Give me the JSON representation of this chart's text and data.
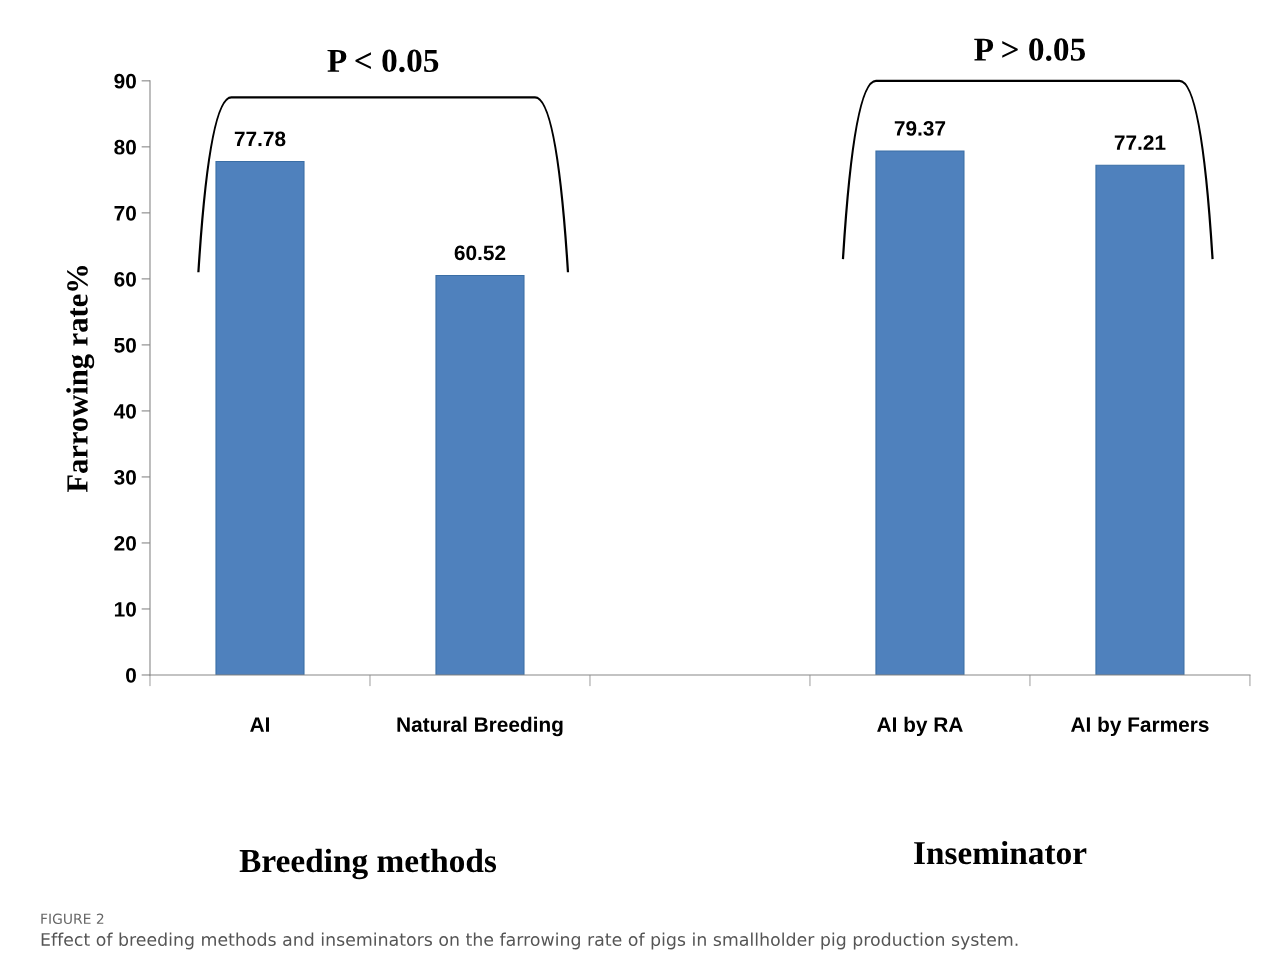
{
  "chart_data": {
    "type": "bar",
    "categories": [
      "AI",
      "Natural Breeding",
      null,
      "AI by RA",
      "AI by Farmers"
    ],
    "values": [
      77.78,
      60.52,
      null,
      79.37,
      77.21
    ],
    "value_labels": [
      "77.78",
      "60.52",
      null,
      "79.37",
      "77.21"
    ],
    "color": "#4f81bd",
    "ylabel": "Farrowing rate%",
    "ylim": [
      0,
      90
    ],
    "yticks": [
      0,
      10,
      20,
      30,
      40,
      50,
      60,
      70,
      80,
      90
    ],
    "grid": false,
    "annotations": [
      "P < 0.05",
      "P > 0.05",
      "Breeding methods",
      "Inseminator",
      "FIGURE 2",
      "Effect of breeding methods and inseminators on the farrowing rate of pigs in smallholder pig production system."
    ]
  }
}
